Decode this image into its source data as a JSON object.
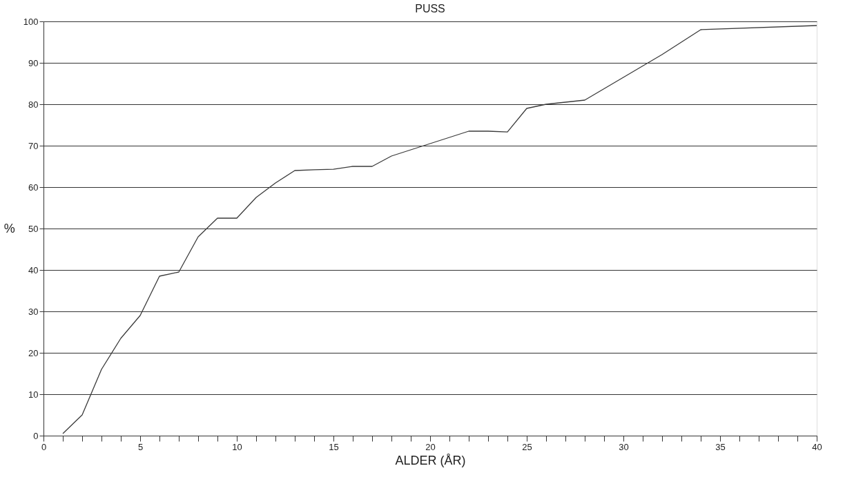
{
  "chart_data": {
    "type": "line",
    "title": "PUSS",
    "xlabel": "ALDER (ÅR)",
    "ylabel": "%",
    "x": [
      1,
      2,
      3,
      4,
      5,
      6,
      7,
      8,
      9,
      10,
      11,
      12,
      13,
      14,
      15,
      16,
      17,
      18,
      19,
      20,
      22,
      23,
      24,
      25,
      26,
      27,
      28,
      30,
      32,
      34,
      40
    ],
    "series": [
      {
        "color": "#3a3a3a",
        "values": [
          0.5,
          5,
          16,
          23.5,
          29,
          38.5,
          39.5,
          48,
          52.5,
          52.5,
          57.5,
          61,
          64,
          64.2,
          64.3,
          65,
          65,
          67.5,
          69,
          70.5,
          73.5,
          73.5,
          73.3,
          79,
          80,
          80.5,
          81,
          86.5,
          92,
          98,
          99
        ]
      }
    ],
    "xlim": [
      0,
      40
    ],
    "xticks": [
      0,
      {
        "value": 1,
        "label": null
      },
      {
        "value": 2,
        "label": null
      },
      {
        "value": 3,
        "label": null
      },
      {
        "value": 4,
        "label": null
      },
      5,
      {
        "value": 6,
        "label": null
      },
      {
        "value": 7,
        "label": null
      },
      {
        "value": 8,
        "label": null
      },
      {
        "value": 9,
        "label": null
      },
      10,
      {
        "value": 11,
        "label": null
      },
      {
        "value": 12,
        "label": null
      },
      {
        "value": 13,
        "label": null
      },
      {
        "value": 14,
        "label": null
      },
      15,
      {
        "value": 16,
        "label": null
      },
      {
        "value": 17,
        "label": null
      },
      {
        "value": 18,
        "label": null
      },
      {
        "value": 19,
        "label": null
      },
      20,
      {
        "value": 21,
        "label": null
      },
      {
        "value": 22,
        "label": null
      },
      {
        "value": 23,
        "label": null
      },
      {
        "value": 24,
        "label": null
      },
      25,
      {
        "value": 26,
        "label": null
      },
      {
        "value": 27,
        "label": null
      },
      {
        "value": 28,
        "label": null
      },
      {
        "value": 29,
        "label": null
      },
      30,
      {
        "value": 31,
        "label": null
      },
      {
        "value": 32,
        "label": null
      },
      {
        "value": 33,
        "label": null
      },
      {
        "value": 34,
        "label": null
      },
      35,
      {
        "value": 36,
        "label": null
      },
      {
        "value": 37,
        "label": null
      },
      {
        "value": 38,
        "label": null
      },
      {
        "value": 39,
        "label": null
      },
      40
    ],
    "ylim": [
      0,
      100
    ],
    "yticks": [
      0,
      10,
      20,
      30,
      40,
      50,
      60,
      70,
      80,
      90,
      100
    ],
    "grid": "y",
    "marker": "none",
    "line_style": "solid"
  }
}
